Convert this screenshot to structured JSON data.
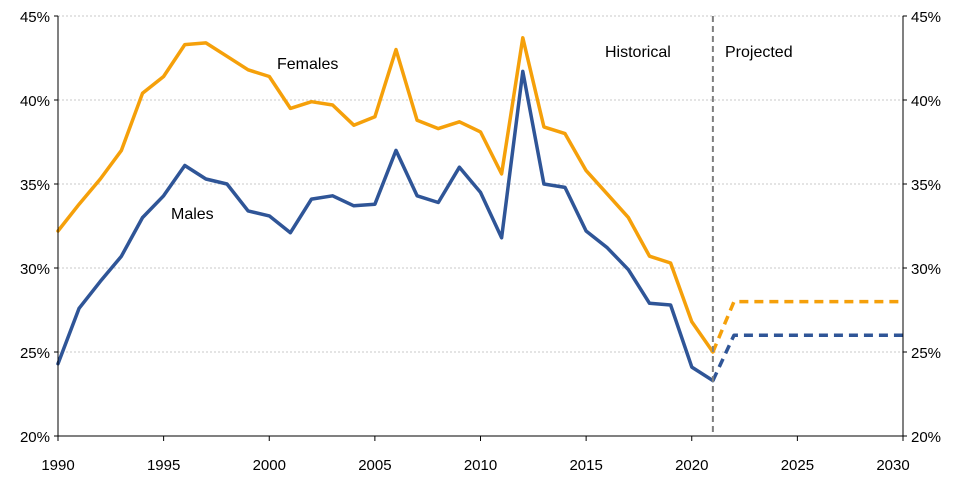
{
  "chart_data": {
    "type": "line",
    "title": "",
    "xlabel": "",
    "ylabel": "",
    "xlim": [
      1990,
      2030
    ],
    "ylim": [
      20,
      45
    ],
    "x_ticks": [
      "1990",
      "1995",
      "2000",
      "2005",
      "2010",
      "2015",
      "2020",
      "2025",
      "2030"
    ],
    "y_ticks": [
      "20%",
      "25%",
      "30%",
      "35%",
      "40%",
      "45%"
    ],
    "grid": "horizontal dotted",
    "annotations": {
      "historical": "Historical",
      "projected": "Projected",
      "females": "Females",
      "males": "Males",
      "divider_year": 2021
    },
    "series": [
      {
        "name": "Females",
        "color": "#F5A00A",
        "style": "solid",
        "x": [
          1990,
          1991,
          1992,
          1993,
          1994,
          1995,
          1996,
          1997,
          1998,
          1999,
          2000,
          2001,
          2002,
          2003,
          2004,
          2005,
          2006,
          2007,
          2008,
          2009,
          2010,
          2011,
          2012,
          2013,
          2014,
          2015,
          2016,
          2017,
          2018,
          2019,
          2020,
          2021
        ],
        "values": [
          32.2,
          33.8,
          35.3,
          37.0,
          40.4,
          41.4,
          43.3,
          43.4,
          42.6,
          41.8,
          41.4,
          39.5,
          39.9,
          39.7,
          38.5,
          39.0,
          43.0,
          38.8,
          38.3,
          38.7,
          38.1,
          35.6,
          43.7,
          38.4,
          38.0,
          35.8,
          34.4,
          33.0,
          30.7,
          30.3,
          26.8,
          25.0
        ]
      },
      {
        "name": "Males",
        "color": "#2F5597",
        "style": "solid",
        "x": [
          1990,
          1991,
          1992,
          1993,
          1994,
          1995,
          1996,
          1997,
          1998,
          1999,
          2000,
          2001,
          2002,
          2003,
          2004,
          2005,
          2006,
          2007,
          2008,
          2009,
          2010,
          2011,
          2012,
          2013,
          2014,
          2015,
          2016,
          2017,
          2018,
          2019,
          2020,
          2021
        ],
        "values": [
          24.3,
          27.6,
          29.2,
          30.7,
          33.0,
          34.3,
          36.1,
          35.3,
          35.0,
          33.4,
          33.1,
          32.1,
          34.1,
          34.3,
          33.7,
          33.8,
          37.0,
          34.3,
          33.9,
          36.0,
          34.5,
          31.8,
          41.7,
          35.0,
          34.8,
          32.2,
          31.2,
          29.9,
          27.9,
          27.8,
          24.1,
          23.3
        ]
      },
      {
        "name": "Females",
        "color": "#F5A00A",
        "style": "dashed",
        "x": [
          2021,
          2022,
          2030
        ],
        "values": [
          25.0,
          28.0,
          28.0
        ]
      },
      {
        "name": "Males",
        "color": "#2F5597",
        "style": "dashed",
        "x": [
          2021,
          2022,
          2030
        ],
        "values": [
          23.3,
          26.0,
          26.0
        ]
      }
    ]
  }
}
